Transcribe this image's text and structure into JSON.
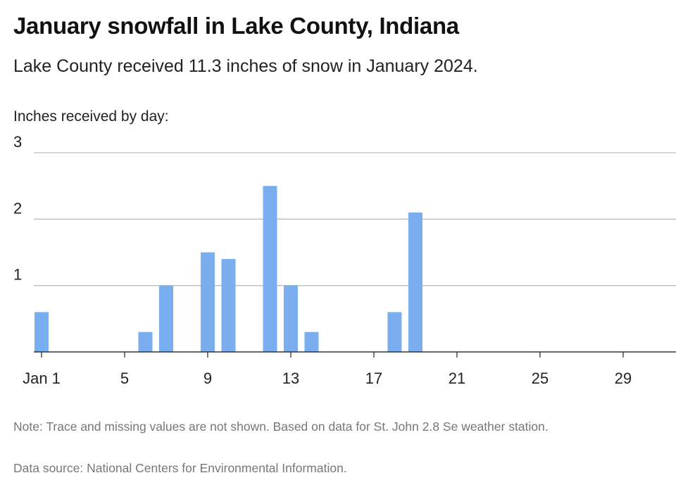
{
  "header": {
    "title": "January snowfall in Lake County, Indiana",
    "subtitle": "Lake County received 11.3 inches of snow in January 2024."
  },
  "footer": {
    "note": "Note: Trace and missing values are not shown. Based on data for St. John 2.8 Se weather station.",
    "source": "Data source: National Centers for Environmental Information."
  },
  "colors": {
    "bar": "#7aaeef",
    "grid": "#bbbbbb",
    "axis": "#333333"
  },
  "chart_data": {
    "type": "bar",
    "title": "January snowfall in Lake County, Indiana",
    "subtitle": "Lake County received 11.3 inches of snow in January 2024.",
    "ylabel": "Inches received by day:",
    "xlabel": "",
    "ylim": [
      0,
      3
    ],
    "yticks": [
      1,
      2,
      3
    ],
    "xlim": [
      1,
      31
    ],
    "xticks": [
      {
        "day": 1,
        "label": "Jan 1"
      },
      {
        "day": 5,
        "label": "5"
      },
      {
        "day": 9,
        "label": "9"
      },
      {
        "day": 13,
        "label": "13"
      },
      {
        "day": 17,
        "label": "17"
      },
      {
        "day": 21,
        "label": "21"
      },
      {
        "day": 25,
        "label": "25"
      },
      {
        "day": 29,
        "label": "29"
      }
    ],
    "grid": true,
    "series": [
      {
        "points": [
          {
            "day": 1,
            "value": 0.6
          },
          {
            "day": 6,
            "value": 0.3
          },
          {
            "day": 7,
            "value": 1.0
          },
          {
            "day": 9,
            "value": 1.5
          },
          {
            "day": 10,
            "value": 1.4
          },
          {
            "day": 12,
            "value": 2.5
          },
          {
            "day": 13,
            "value": 1.0
          },
          {
            "day": 14,
            "value": 0.3
          },
          {
            "day": 18,
            "value": 0.6
          },
          {
            "day": 19,
            "value": 2.1
          }
        ]
      }
    ]
  }
}
